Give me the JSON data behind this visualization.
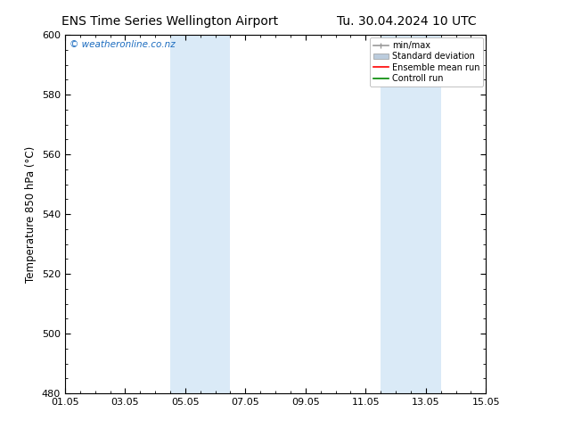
{
  "title_left": "ENS Time Series Wellington Airport",
  "title_right": "Tu. 30.04.2024 10 UTC",
  "ylabel": "Temperature 850 hPa (°C)",
  "ylim": [
    480,
    600
  ],
  "yticks": [
    480,
    500,
    520,
    540,
    560,
    580,
    600
  ],
  "xlim": [
    0,
    14
  ],
  "xlabel_ticks": [
    "01.05",
    "03.05",
    "05.05",
    "07.05",
    "09.05",
    "11.05",
    "13.05",
    "15.05"
  ],
  "xlabel_tick_positions": [
    0,
    2,
    4,
    6,
    8,
    10,
    12,
    14
  ],
  "shaded_bands": [
    {
      "x_start": 3.5,
      "x_end": 5.5,
      "color": "#daeaf7"
    },
    {
      "x_start": 10.5,
      "x_end": 12.5,
      "color": "#daeaf7"
    }
  ],
  "watermark_text": "© weatheronline.co.nz",
  "watermark_color": "#1a6bbf",
  "background_color": "#ffffff",
  "plot_bg_color": "#ffffff",
  "legend_entries": [
    "min/max",
    "Standard deviation",
    "Ensemble mean run",
    "Controll run"
  ],
  "legend_colors_line": [
    "#999999",
    "#bbccdd",
    "#ff0000",
    "#008800"
  ],
  "border_color": "#000000",
  "tick_label_fontsize": 8,
  "title_fontsize": 10,
  "axis_label_fontsize": 8.5
}
